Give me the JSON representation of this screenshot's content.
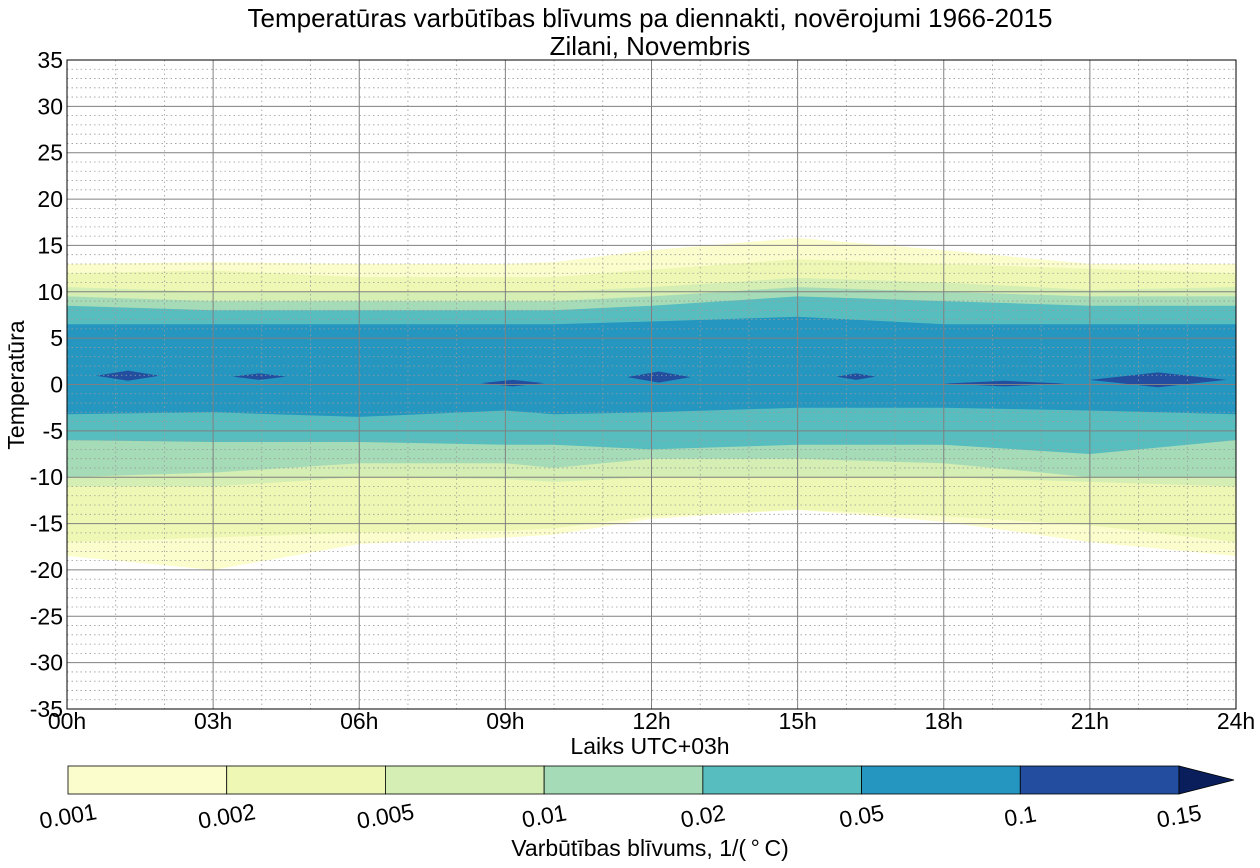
{
  "chart_data": {
    "type": "contourf",
    "title_line1": "Temperatūras varbūtības blīvums pa diennakti, novērojumi 1966-2015",
    "title_line2": "Zilani, Novembris",
    "xlabel": "Laiks UTC+03h",
    "ylabel": "Temperatūra",
    "x_ticks": [
      "00h",
      "03h",
      "06h",
      "09h",
      "12h",
      "15h",
      "18h",
      "21h",
      "24h"
    ],
    "xlim": [
      0,
      24
    ],
    "ylim": [
      -35,
      35
    ],
    "y_ticks": [
      35,
      30,
      25,
      20,
      15,
      10,
      5,
      0,
      -5,
      -10,
      -15,
      -20,
      -25,
      -30,
      -35
    ],
    "grid": true,
    "colormap": "YlGnBu",
    "colorbar": {
      "label": "Varbūtības blīvums, 1/($^\\circ$C)",
      "label_display": "Varbūtības blīvums, 1/( ° C)",
      "levels": [
        "0.001",
        "0.002",
        "0.005",
        "0.01",
        "0.02",
        "0.05",
        "0.1",
        "0.15"
      ],
      "colors": [
        "#fbfdcd",
        "#eef8b4",
        "#d4eeb3",
        "#a6dbb7",
        "#58bdbe",
        "#2496c0",
        "#234ea0",
        "#0b1e5c"
      ],
      "extend": "max"
    },
    "hours": [
      0,
      3,
      6,
      9,
      10,
      12,
      15,
      18,
      21,
      24
    ],
    "bands": [
      {
        "level": "0.001",
        "upper": [
          13.0,
          13.2,
          13.0,
          13.0,
          13.2,
          14.5,
          15.8,
          14.5,
          13.0,
          13.0
        ],
        "lower": [
          -18.5,
          -20.0,
          -17.2,
          -16.5,
          -16.2,
          -14.5,
          -13.5,
          -14.8,
          -17.0,
          -18.5
        ]
      },
      {
        "level": "0.002",
        "upper": [
          12.0,
          12.3,
          11.6,
          11.6,
          11.6,
          12.4,
          13.5,
          13.0,
          12.5,
          12.0
        ],
        "lower": [
          -17.0,
          -16.5,
          -16.0,
          -15.8,
          -15.5,
          -14.2,
          -13.5,
          -14.2,
          -15.2,
          -17.0
        ]
      },
      {
        "level": "0.005",
        "upper": [
          10.5,
          10.0,
          10.0,
          10.0,
          10.0,
          10.5,
          11.5,
          11.0,
          10.2,
          10.5
        ],
        "lower": [
          -11.0,
          -11.0,
          -10.0,
          -10.2,
          -10.5,
          -10.0,
          -10.0,
          -10.0,
          -10.5,
          -11.0
        ]
      },
      {
        "level": "0.01",
        "upper": [
          9.5,
          9.0,
          9.0,
          9.0,
          9.0,
          9.5,
          10.5,
          10.0,
          9.5,
          9.5
        ],
        "lower": [
          -10.0,
          -9.5,
          -8.5,
          -8.5,
          -9.0,
          -8.0,
          -8.0,
          -8.5,
          -10.0,
          -10.0
        ]
      },
      {
        "level": "0.02",
        "upper": [
          8.5,
          8.0,
          8.0,
          8.0,
          8.0,
          8.5,
          9.5,
          9.0,
          8.5,
          8.5
        ],
        "lower": [
          -6.0,
          -6.2,
          -6.2,
          -6.5,
          -6.5,
          -7.0,
          -6.5,
          -6.5,
          -7.5,
          -6.0
        ]
      },
      {
        "level": "0.05",
        "upper": [
          6.5,
          6.5,
          6.5,
          6.5,
          6.5,
          6.8,
          7.3,
          6.5,
          6.5,
          6.5
        ],
        "lower": [
          -3.2,
          -3.0,
          -3.5,
          -2.8,
          -3.2,
          -3.0,
          -2.5,
          -2.5,
          -2.8,
          -3.2
        ]
      }
    ],
    "peaks": [
      {
        "level": "0.1",
        "x0": 0.6,
        "x1": 1.9,
        "y0": 0.4,
        "y1": 1.5
      },
      {
        "level": "0.1",
        "x0": 3.4,
        "x1": 4.5,
        "y0": 0.5,
        "y1": 1.2
      },
      {
        "level": "0.1",
        "x0": 8.5,
        "x1": 9.8,
        "y0": -0.2,
        "y1": 0.5
      },
      {
        "level": "0.1",
        "x0": 11.5,
        "x1": 12.8,
        "y0": 0.2,
        "y1": 1.4
      },
      {
        "level": "0.1",
        "x0": 15.8,
        "x1": 16.6,
        "y0": 0.5,
        "y1": 1.2
      },
      {
        "level": "0.1",
        "x0": 18.0,
        "x1": 20.5,
        "y0": -0.2,
        "y1": 0.4
      },
      {
        "level": "0.1",
        "x0": 21.0,
        "x1": 23.8,
        "y0": -0.3,
        "y1": 1.3
      }
    ]
  }
}
